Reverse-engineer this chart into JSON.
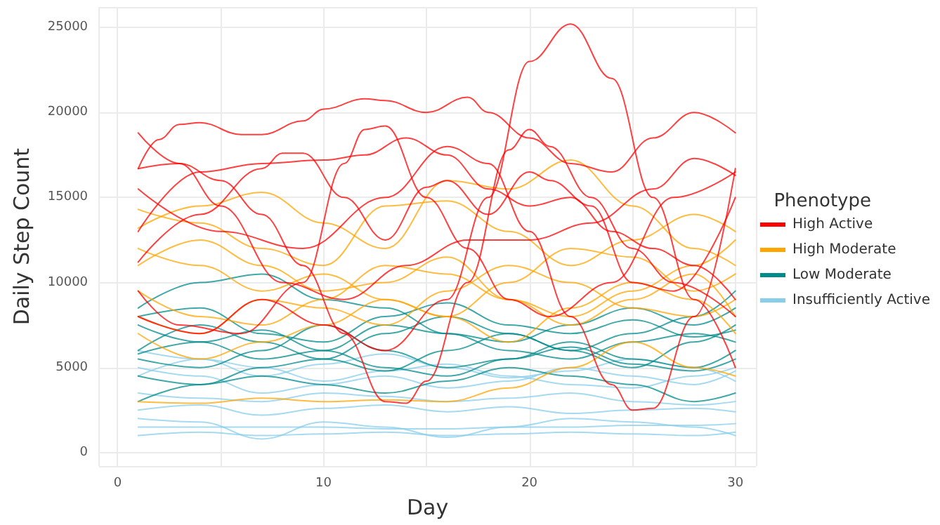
{
  "chart_data": {
    "type": "line",
    "xlabel": "Day",
    "ylabel": "Daily Step Count",
    "legend_title": "Phenotype",
    "legend": "right",
    "grid": true,
    "xlim": [
      -0.9,
      31
    ],
    "xticks": [
      0,
      10,
      20,
      30
    ],
    "ylim": [
      -800,
      26200
    ],
    "yticks": [
      0,
      5000,
      10000,
      15000,
      20000,
      25000
    ],
    "series": [
      {
        "name": "High Active",
        "color": "#ff0000",
        "x": [
          1,
          4,
          7,
          10,
          13,
          16,
          18,
          20,
          22,
          24,
          26,
          28,
          30
        ],
        "values": [
          8000,
          7000,
          9000,
          7500,
          6000,
          9000,
          15000,
          23000,
          25200,
          22000,
          15000,
          9000,
          5000
        ]
      },
      {
        "color": "#ff0000",
        "x": [
          1,
          2,
          3,
          4,
          6,
          7,
          9,
          10,
          12,
          13,
          15,
          17,
          18,
          20,
          22,
          24,
          26,
          28,
          30
        ],
        "values": [
          16700,
          18400,
          19300,
          19400,
          18700,
          18700,
          19500,
          20200,
          20800,
          20700,
          20000,
          20900,
          20000,
          18500,
          17000,
          16500,
          18500,
          20000,
          18800
        ]
      },
      {
        "color": "#ff0000",
        "x": [
          1,
          3,
          5,
          7,
          9,
          11,
          13,
          14,
          15,
          17,
          19,
          20,
          21,
          23,
          25,
          27,
          30
        ],
        "values": [
          16700,
          17000,
          16000,
          14000,
          11000,
          7000,
          3000,
          2900,
          4200,
          10000,
          17800,
          19000,
          18000,
          15000,
          12000,
          10000,
          8000
        ]
      },
      {
        "color": "#ff0000",
        "x": [
          1,
          5,
          9,
          13,
          16,
          18,
          20,
          22,
          24,
          25,
          26,
          28,
          30
        ],
        "values": [
          15500,
          13000,
          12000,
          15000,
          18000,
          17000,
          13000,
          8000,
          4000,
          2500,
          2600,
          8000,
          16700
        ]
      },
      {
        "color": "#ff0000",
        "x": [
          1,
          3,
          5,
          8,
          11,
          14,
          17,
          20,
          23,
          26,
          28,
          30
        ],
        "values": [
          18800,
          17000,
          14500,
          10000,
          9000,
          11000,
          12500,
          12500,
          13500,
          15500,
          17300,
          16300
        ]
      },
      {
        "color": "#ff0000",
        "x": [
          1,
          4,
          7,
          8,
          9,
          11,
          13,
          15,
          16,
          18,
          20,
          21,
          23,
          25,
          27,
          30
        ],
        "values": [
          11200,
          14000,
          16700,
          17600,
          17600,
          15000,
          12500,
          15600,
          16000,
          14000,
          16500,
          16000,
          14500,
          10000,
          9500,
          15000
        ]
      },
      {
        "color": "#ff0000",
        "x": [
          1,
          3,
          6,
          9,
          11,
          12,
          13,
          15,
          17,
          19,
          21,
          24,
          27,
          30
        ],
        "values": [
          9500,
          7500,
          7000,
          10000,
          17000,
          19000,
          19200,
          15000,
          12000,
          9000,
          8000,
          10000,
          15000,
          16500
        ]
      },
      {
        "color": "#ff0000",
        "x": [
          1,
          4,
          7,
          10,
          12,
          14,
          16,
          18,
          20,
          22,
          24,
          26,
          28,
          30
        ],
        "values": [
          13000,
          16500,
          17000,
          17200,
          17500,
          18500,
          17500,
          15500,
          14500,
          15000,
          13000,
          12000,
          11000,
          9000
        ]
      },
      {
        "name": "High Moderate",
        "color": "#ffa500",
        "x": [
          1,
          4,
          7,
          10,
          13,
          16,
          19,
          22,
          25,
          28,
          30
        ],
        "values": [
          14300,
          13500,
          12000,
          11000,
          14500,
          14800,
          13000,
          11000,
          12500,
          14000,
          13000
        ]
      },
      {
        "color": "#ffa500",
        "x": [
          1,
          4,
          7,
          10,
          13,
          16,
          19,
          22,
          25,
          28,
          30
        ],
        "values": [
          12000,
          11000,
          9500,
          10500,
          9000,
          8000,
          10000,
          12000,
          11500,
          9500,
          10500
        ]
      },
      {
        "color": "#ffa500",
        "x": [
          1,
          4,
          7,
          10,
          13,
          16,
          19,
          22,
          25,
          28,
          30
        ],
        "values": [
          9500,
          8000,
          7500,
          9000,
          11000,
          10500,
          9000,
          8000,
          9500,
          11000,
          12500
        ]
      },
      {
        "color": "#ffa500",
        "x": [
          1,
          4,
          7,
          10,
          13,
          16,
          19,
          22,
          25,
          28,
          30
        ],
        "values": [
          8000,
          7000,
          9000,
          8500,
          7500,
          9500,
          11000,
          10000,
          8500,
          8000,
          9000
        ]
      },
      {
        "color": "#ffa500",
        "x": [
          1,
          4,
          7,
          10,
          13,
          16,
          19,
          22,
          25,
          28,
          30
        ],
        "values": [
          13200,
          14500,
          15300,
          13500,
          12000,
          16000,
          15500,
          17200,
          14500,
          12000,
          11000
        ]
      },
      {
        "color": "#ffa500",
        "x": [
          1,
          4,
          7,
          10,
          13,
          16,
          19,
          22,
          25,
          28,
          30
        ],
        "values": [
          3000,
          2900,
          3200,
          3000,
          3100,
          3000,
          3800,
          5000,
          6500,
          5000,
          4500
        ]
      },
      {
        "color": "#ffa500",
        "x": [
          1,
          4,
          7,
          10,
          13,
          16,
          19,
          22,
          25,
          28,
          30
        ],
        "values": [
          11000,
          12500,
          11000,
          9500,
          10000,
          11500,
          9000,
          7500,
          9000,
          10500,
          8000
        ]
      },
      {
        "color": "#ffa500",
        "x": [
          1,
          4,
          7,
          10,
          13,
          16,
          19,
          22,
          25,
          28,
          30
        ],
        "values": [
          7000,
          5500,
          6500,
          7500,
          9000,
          8000,
          6500,
          8500,
          10000,
          9000,
          7000
        ]
      },
      {
        "name": "Low Moderate",
        "color": "#008b8b",
        "x": [
          1,
          4,
          7,
          10,
          13,
          16,
          19,
          22,
          25,
          28,
          30
        ],
        "values": [
          8500,
          10000,
          10500,
          9000,
          8500,
          7000,
          6500,
          7500,
          8500,
          7500,
          8500
        ]
      },
      {
        "color": "#008b8b",
        "x": [
          1,
          4,
          7,
          10,
          13,
          16,
          19,
          22,
          25,
          28,
          30
        ],
        "values": [
          6000,
          7500,
          6500,
          5500,
          7000,
          8000,
          7000,
          6000,
          7000,
          8000,
          9500
        ]
      },
      {
        "color": "#008b8b",
        "x": [
          1,
          4,
          7,
          10,
          13,
          16,
          19,
          22,
          25,
          28,
          30
        ],
        "values": [
          5500,
          5000,
          6000,
          7500,
          6000,
          5000,
          5500,
          6500,
          5500,
          5000,
          6000
        ]
      },
      {
        "color": "#008b8b",
        "x": [
          1,
          4,
          7,
          10,
          13,
          16,
          19,
          22,
          25,
          28,
          30
        ],
        "values": [
          7500,
          6500,
          5500,
          6000,
          7500,
          7000,
          6000,
          5500,
          6500,
          7000,
          6500
        ]
      },
      {
        "color": "#008b8b",
        "x": [
          1,
          4,
          7,
          10,
          13,
          16,
          19,
          22,
          25,
          28,
          30
        ],
        "values": [
          4500,
          4000,
          5000,
          5500,
          4800,
          6000,
          7000,
          6000,
          5000,
          6500,
          7500
        ]
      },
      {
        "color": "#008b8b",
        "x": [
          1,
          4,
          7,
          10,
          13,
          16,
          19,
          22,
          25,
          28,
          30
        ],
        "values": [
          3000,
          4000,
          4500,
          4000,
          3500,
          4200,
          5000,
          4500,
          4000,
          3000,
          3500
        ]
      },
      {
        "color": "#008b8b",
        "x": [
          1,
          4,
          7,
          10,
          13,
          16,
          19,
          22,
          25,
          28,
          30
        ],
        "values": [
          8000,
          8500,
          7000,
          6500,
          8000,
          8800,
          7500,
          7000,
          7800,
          6800,
          7200
        ]
      },
      {
        "color": "#008b8b",
        "x": [
          1,
          4,
          7,
          10,
          13,
          16,
          19,
          22,
          25,
          28,
          30
        ],
        "values": [
          5800,
          6500,
          7200,
          6000,
          5000,
          4500,
          5500,
          6200,
          5200,
          4800,
          5500
        ]
      },
      {
        "name": "Insufficiently Active",
        "color": "#87ceeb",
        "x": [
          1,
          4,
          7,
          10,
          13,
          16,
          19,
          22,
          25,
          28,
          30
        ],
        "values": [
          5000,
          4500,
          3500,
          4000,
          4500,
          3800,
          4200,
          5000,
          4500,
          4000,
          4800
        ]
      },
      {
        "color": "#87ceeb",
        "x": [
          1,
          4,
          7,
          10,
          13,
          16,
          19,
          22,
          25,
          28,
          30
        ],
        "values": [
          1000,
          1200,
          1000,
          1100,
          1200,
          1000,
          1100,
          1200,
          1100,
          1000,
          1200
        ]
      },
      {
        "color": "#87ceeb",
        "x": [
          1,
          4,
          7,
          10,
          13,
          16,
          19,
          22,
          25,
          28,
          30
        ],
        "values": [
          1500,
          1500,
          1500,
          1500,
          1400,
          1400,
          1500,
          1500,
          1600,
          1600,
          1700
        ]
      },
      {
        "color": "#87ceeb",
        "x": [
          1,
          4,
          7,
          10,
          13,
          16,
          19,
          22,
          25,
          28,
          30
        ],
        "values": [
          2000,
          1800,
          800,
          1800,
          1500,
          900,
          1500,
          2000,
          1800,
          1500,
          1000
        ]
      },
      {
        "color": "#87ceeb",
        "x": [
          1,
          4,
          7,
          10,
          13,
          16,
          19,
          22,
          25,
          28,
          30
        ],
        "values": [
          3500,
          3200,
          3000,
          3500,
          3300,
          3000,
          3200,
          3500,
          3000,
          2800,
          3000
        ]
      },
      {
        "color": "#87ceeb",
        "x": [
          1,
          4,
          7,
          10,
          13,
          16,
          19,
          22,
          25,
          28,
          30
        ],
        "values": [
          4500,
          5500,
          5000,
          4200,
          4800,
          5200,
          4500,
          4000,
          3800,
          4500,
          5000
        ]
      },
      {
        "color": "#87ceeb",
        "x": [
          1,
          4,
          7,
          10,
          13,
          16,
          19,
          22,
          25,
          28,
          30
        ],
        "values": [
          2500,
          2800,
          2200,
          2600,
          2800,
          2400,
          2700,
          2300,
          2500,
          2600,
          2400
        ]
      },
      {
        "color": "#87ceeb",
        "x": [
          1,
          4,
          7,
          10,
          13,
          16,
          19,
          22,
          25,
          28,
          30
        ],
        "values": [
          6000,
          5500,
          4500,
          5200,
          5800,
          5000,
          4400,
          4800,
          5500,
          5000,
          4200
        ]
      }
    ]
  }
}
